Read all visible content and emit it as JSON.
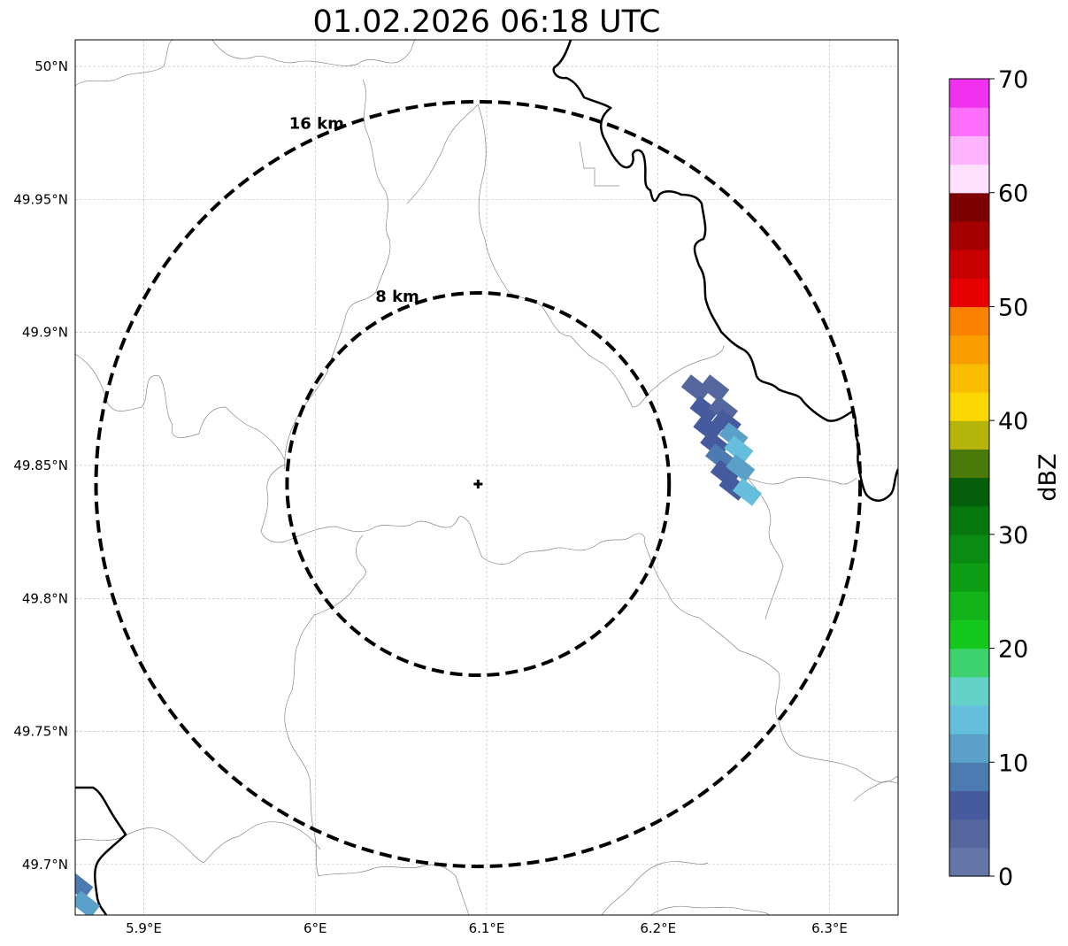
{
  "title": "01.02.2026 06:18 UTC",
  "map": {
    "lat_range": [
      49.681,
      50.01
    ],
    "lon_range": [
      5.86,
      6.34
    ],
    "lat_ticks": [
      {
        "value": 49.7,
        "label": "49.7°N"
      },
      {
        "value": 49.75,
        "label": "49.75°N"
      },
      {
        "value": 49.8,
        "label": "49.8°N"
      },
      {
        "value": 49.85,
        "label": "49.85°N"
      },
      {
        "value": 49.9,
        "label": "49.9°N"
      },
      {
        "value": 49.95,
        "label": "49.95°N"
      },
      {
        "value": 50.0,
        "label": "50°N"
      }
    ],
    "lon_ticks": [
      {
        "value": 5.9,
        "label": "5.9°E"
      },
      {
        "value": 6.0,
        "label": "6°E"
      },
      {
        "value": 6.1,
        "label": "6.1°E"
      },
      {
        "value": 6.2,
        "label": "6.2°E"
      },
      {
        "value": 6.3,
        "label": "6.3°E"
      }
    ],
    "gridlines": true,
    "radar_center": {
      "lon": 6.095,
      "lat": 49.843
    },
    "range_rings": [
      {
        "radius_km": 8,
        "label": "8 km"
      },
      {
        "radius_km": 16,
        "label": "16 km"
      }
    ]
  },
  "colorbar": {
    "label": "dBZ",
    "min": 0,
    "max": 70,
    "ticks": [
      "0",
      "10",
      "20",
      "30",
      "40",
      "50",
      "60",
      "70"
    ],
    "colors": [
      "#6475a8",
      "#55679e",
      "#455b9e",
      "#4b7bb0",
      "#5aa0c8",
      "#64bedc",
      "#64d2c8",
      "#3cd26e",
      "#14c81e",
      "#12b41a",
      "#0e9e16",
      "#0a8c12",
      "#07780e",
      "#045e0a",
      "#4a7a0a",
      "#b4b40a",
      "#fad700",
      "#fabc00",
      "#fa9e00",
      "#fa8200",
      "#e60000",
      "#c80000",
      "#a50000",
      "#7d0000",
      "#ffe1ff",
      "#ffb4ff",
      "#ff6eff",
      "#f032f0"
    ]
  },
  "echoes": [
    {
      "lon": 6.222,
      "lat": 49.879,
      "dbz": 3
    },
    {
      "lon": 6.233,
      "lat": 49.879,
      "dbz": 4
    },
    {
      "lon": 6.227,
      "lat": 49.871,
      "dbz": 5
    },
    {
      "lon": 6.238,
      "lat": 49.871,
      "dbz": 4
    },
    {
      "lon": 6.229,
      "lat": 49.864,
      "dbz": 6
    },
    {
      "lon": 6.24,
      "lat": 49.866,
      "dbz": 5
    },
    {
      "lon": 6.233,
      "lat": 49.858,
      "dbz": 7
    },
    {
      "lon": 6.244,
      "lat": 49.861,
      "dbz": 12
    },
    {
      "lon": 6.236,
      "lat": 49.853,
      "dbz": 9
    },
    {
      "lon": 6.247,
      "lat": 49.856,
      "dbz": 14
    },
    {
      "lon": 6.239,
      "lat": 49.847,
      "dbz": 5
    },
    {
      "lon": 6.248,
      "lat": 49.849,
      "dbz": 11
    },
    {
      "lon": 6.244,
      "lat": 49.842,
      "dbz": 7
    },
    {
      "lon": 6.252,
      "lat": 49.84,
      "dbz": 13
    },
    {
      "lon": 5.862,
      "lat": 49.692,
      "dbz": 8
    },
    {
      "lon": 5.866,
      "lat": 49.685,
      "dbz": 12
    }
  ]
}
